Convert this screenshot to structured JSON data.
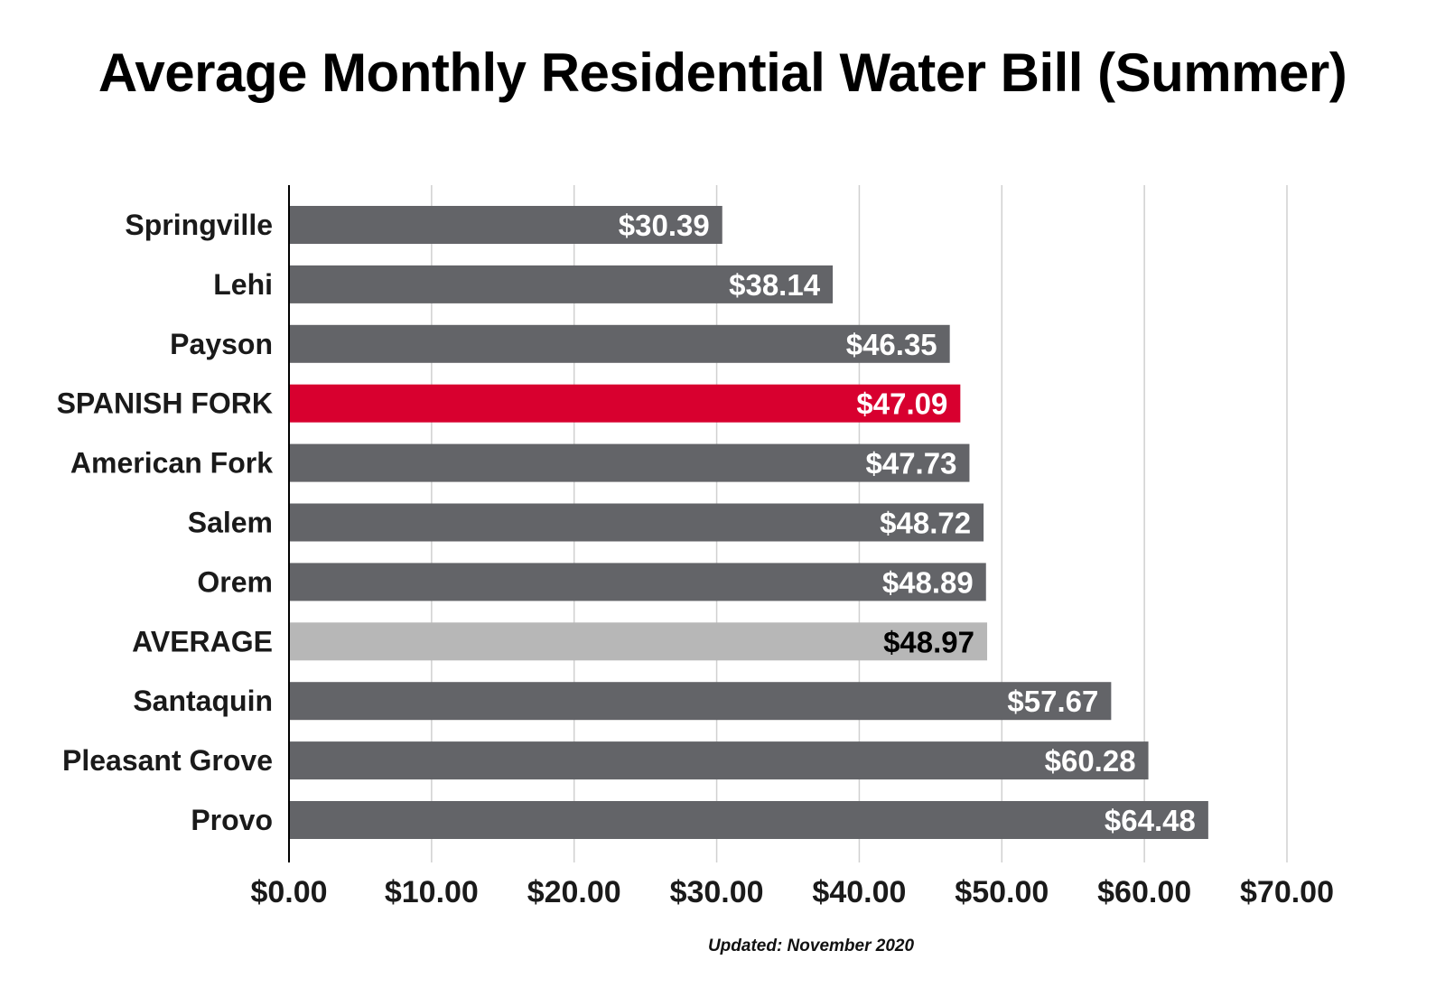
{
  "chart_data": {
    "type": "bar",
    "orientation": "horizontal",
    "title": "Average Monthly Residential Water Bill (Summer)",
    "footnote": "Updated: November 2020",
    "categories": [
      "Springville",
      "Lehi",
      "Payson",
      "SPANISH FORK",
      "American Fork",
      "Salem",
      "Orem",
      "AVERAGE",
      "Santaquin",
      "Pleasant Grove",
      "Provo"
    ],
    "values": [
      30.39,
      38.14,
      46.35,
      47.09,
      47.73,
      48.72,
      48.89,
      48.97,
      57.67,
      60.28,
      64.48
    ],
    "value_labels": [
      "$30.39",
      "$38.14",
      "$46.35",
      "$47.09",
      "$47.73",
      "$48.72",
      "$48.89",
      "$48.97",
      "$57.67",
      "$60.28",
      "$64.48"
    ],
    "xlim": [
      0,
      70
    ],
    "xticks": [
      0,
      10,
      20,
      30,
      40,
      50,
      60,
      70
    ],
    "xtick_labels": [
      "$0.00",
      "$10.00",
      "$20.00",
      "$30.00",
      "$40.00",
      "$50.00",
      "$60.00",
      "$70.00"
    ],
    "grid": "vertical",
    "legend": "none",
    "colors": {
      "default_bar": "#636468",
      "highlight_bar": "#d8002f",
      "average_bar": "#b7b7b7",
      "default_label": "#ffffff",
      "average_label": "#000000",
      "grid": "#d0d0d0",
      "axis": "#000000"
    },
    "highlight": {
      "SPANISH FORK": "highlight_bar",
      "AVERAGE": "average_bar"
    }
  }
}
